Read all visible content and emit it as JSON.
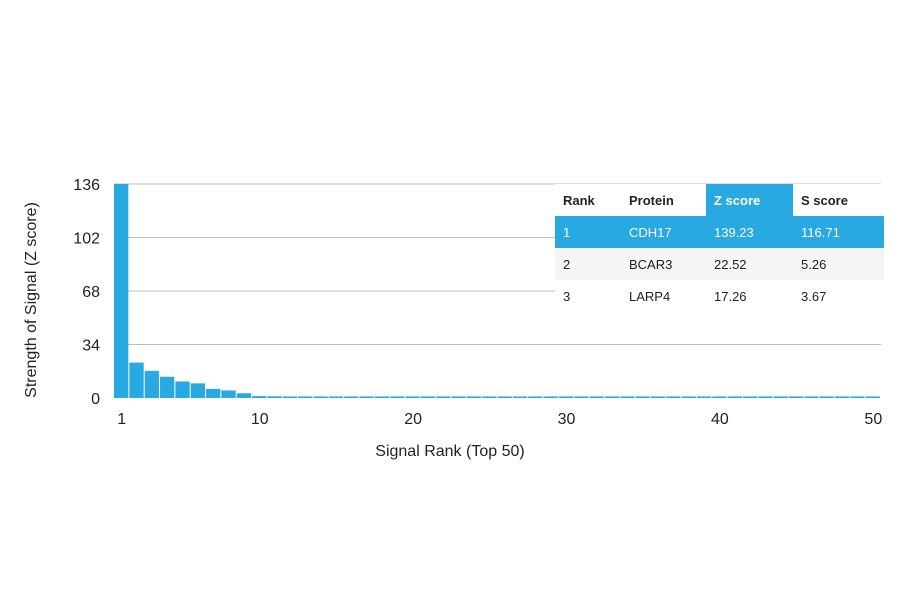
{
  "chart_data": {
    "type": "bar",
    "ylabel": "Strength of Signal (Z score)",
    "xlabel": "Signal Rank (Top 50)",
    "ylim": [
      0,
      136
    ],
    "xlim": [
      1,
      50
    ],
    "yticks": [
      0,
      34,
      68,
      102,
      136
    ],
    "xticks": [
      1,
      10,
      20,
      30,
      40,
      50
    ],
    "grid": true,
    "bar_color": "#29a9e1",
    "x": [
      1,
      2,
      3,
      4,
      5,
      6,
      7,
      8,
      9,
      10,
      11,
      12,
      13,
      14,
      15,
      16,
      17,
      18,
      19,
      20,
      21,
      22,
      23,
      24,
      25,
      26,
      27,
      28,
      29,
      30,
      31,
      32,
      33,
      34,
      35,
      36,
      37,
      38,
      39,
      40,
      41,
      42,
      43,
      44,
      45,
      46,
      47,
      48,
      49,
      50
    ],
    "values": [
      139.23,
      22.52,
      17.26,
      13.5,
      10.5,
      9.3,
      5.8,
      4.8,
      3.0,
      1.2,
      1.1,
      1.0,
      1.0,
      1.0,
      1.0,
      1.0,
      1.0,
      1.0,
      1.0,
      1.0,
      1.0,
      1.0,
      1.0,
      1.0,
      1.0,
      1.0,
      1.0,
      1.0,
      1.0,
      1.0,
      1.0,
      1.0,
      1.0,
      1.0,
      1.0,
      1.0,
      1.0,
      1.0,
      1.0,
      1.0,
      1.0,
      1.0,
      1.0,
      1.0,
      1.0,
      1.0,
      1.0,
      1.0,
      1.0,
      1.0
    ]
  },
  "table": {
    "header_highlight_color": "#29a9e1",
    "headers": [
      "Rank",
      "Protein",
      "Z score",
      "S score"
    ],
    "highlight_column": 2,
    "highlight_row": 0,
    "rows": [
      [
        "1",
        "CDH17",
        "139.23",
        "116.71"
      ],
      [
        "2",
        "BCAR3",
        "22.52",
        "5.26"
      ],
      [
        "3",
        "LARP4",
        "17.26",
        "3.67"
      ]
    ]
  }
}
